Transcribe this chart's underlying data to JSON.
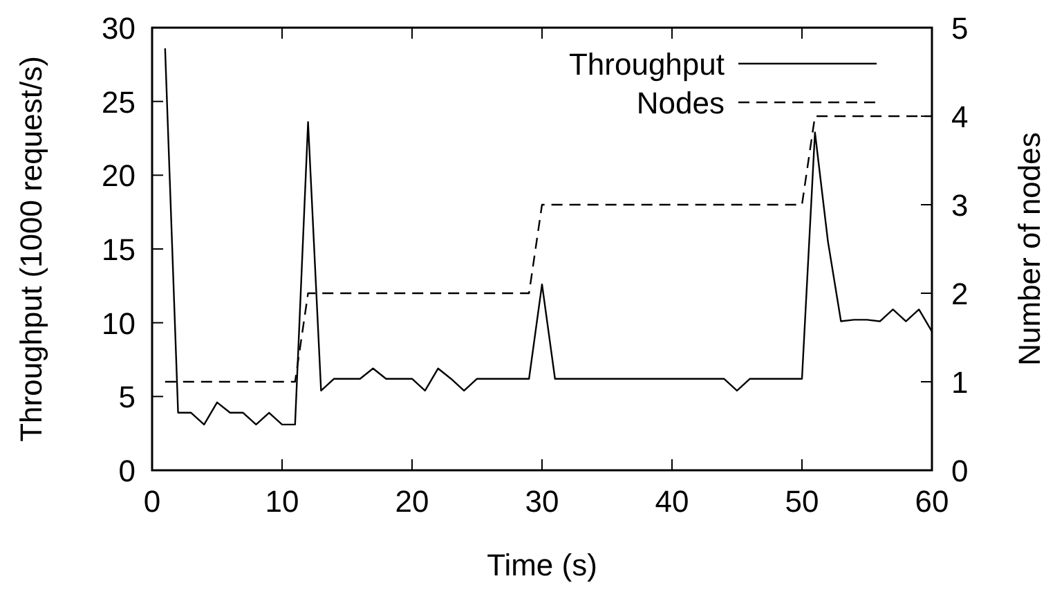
{
  "chart_data": {
    "type": "line",
    "xlabel": "Time (s)",
    "ylabel": "Throughput (1000 request/s)",
    "y2label": "Number of nodes",
    "x": [
      1,
      2,
      3,
      4,
      5,
      6,
      7,
      8,
      9,
      10,
      11,
      12,
      13,
      14,
      15,
      16,
      17,
      18,
      19,
      20,
      21,
      22,
      23,
      24,
      25,
      26,
      27,
      28,
      29,
      30,
      31,
      32,
      33,
      34,
      35,
      36,
      37,
      38,
      39,
      40,
      41,
      42,
      43,
      44,
      45,
      46,
      47,
      48,
      49,
      50,
      51,
      52,
      53,
      54,
      55,
      56,
      57,
      58,
      59,
      60
    ],
    "series": [
      {
        "name": "Throughput",
        "color": "#000000",
        "line_style": "solid",
        "values": [
          28.6,
          3.9,
          3.9,
          3.1,
          4.6,
          3.9,
          3.9,
          3.1,
          3.9,
          3.1,
          3.1,
          23.6,
          5.4,
          6.2,
          6.2,
          6.2,
          6.9,
          6.2,
          6.2,
          6.2,
          5.4,
          6.9,
          6.2,
          5.4,
          6.2,
          6.2,
          6.2,
          6.2,
          6.2,
          12.6,
          6.2,
          6.2,
          6.2,
          6.2,
          6.2,
          6.2,
          6.2,
          6.2,
          6.2,
          6.2,
          6.2,
          6.2,
          6.2,
          6.2,
          5.4,
          6.2,
          6.2,
          6.2,
          6.2,
          6.2,
          22.9,
          15.5,
          10.1,
          10.2,
          10.2,
          10.1,
          10.9,
          10.1,
          10.9,
          9.4
        ]
      },
      {
        "name": "Nodes",
        "color": "#000000",
        "line_style": "dashed",
        "axis": "y2",
        "values": [
          1,
          1,
          1,
          1,
          1,
          1,
          1,
          1,
          1,
          1,
          1,
          2,
          2,
          2,
          2,
          2,
          2,
          2,
          2,
          2,
          2,
          2,
          2,
          2,
          2,
          2,
          2,
          2,
          2,
          3,
          3,
          3,
          3,
          3,
          3,
          3,
          3,
          3,
          3,
          3,
          3,
          3,
          3,
          3,
          3,
          3,
          3,
          3,
          3,
          3,
          4,
          4,
          4,
          4,
          4,
          4,
          4,
          4,
          4,
          4
        ]
      }
    ],
    "xlim": [
      0,
      60
    ],
    "xticks": [
      0,
      10,
      20,
      30,
      40,
      50,
      60
    ],
    "ylim": [
      0,
      30
    ],
    "yticks": [
      0,
      5,
      10,
      15,
      20,
      25,
      30
    ],
    "y2lim": [
      0,
      5
    ],
    "y2ticks": [
      0,
      1,
      2,
      3,
      4,
      5
    ],
    "legend": "top right",
    "grid": false
  }
}
